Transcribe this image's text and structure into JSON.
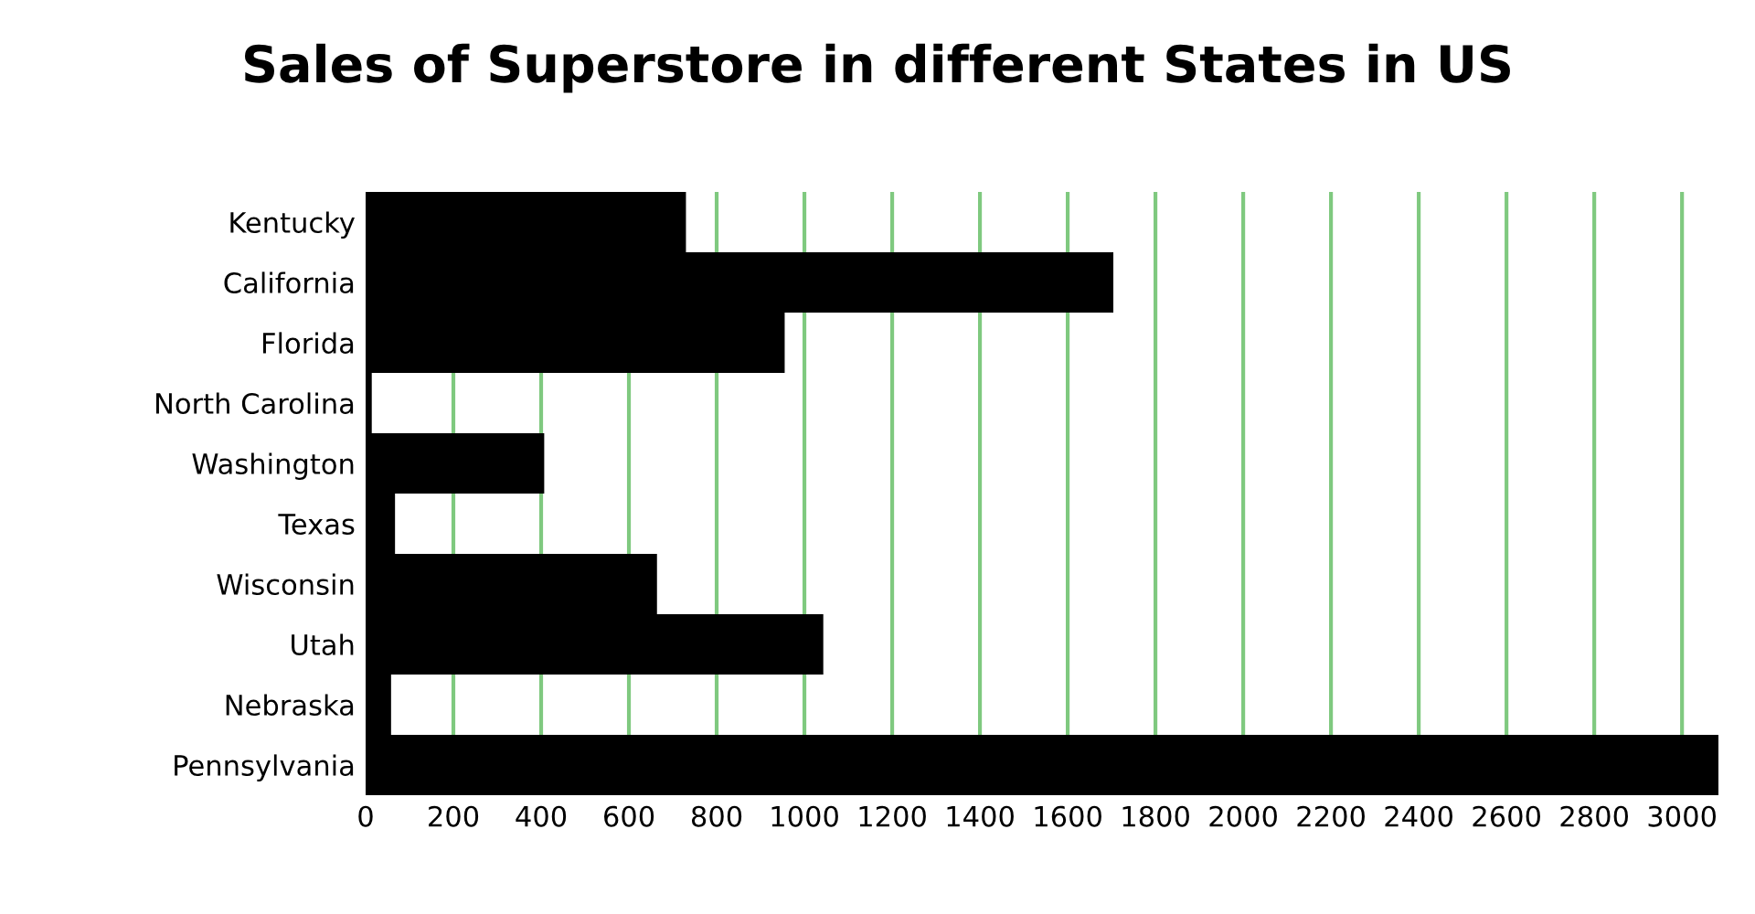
{
  "chart_data": {
    "type": "bar",
    "orientation": "horizontal",
    "title": "Sales of Superstore in different States in US",
    "categories": [
      "Kentucky",
      "California",
      "Florida",
      "North Carolina",
      "Washington",
      "Texas",
      "Wisconsin",
      "Utah",
      "Nebraska",
      "Pennsylvania"
    ],
    "values": [
      730,
      1704,
      955,
      14,
      407,
      67,
      664,
      1043,
      58,
      3083
    ],
    "color": "#000000",
    "xlim": [
      0,
      3083
    ],
    "xticks": [
      0,
      200,
      400,
      600,
      800,
      1000,
      1200,
      1400,
      1600,
      1800,
      2000,
      2200,
      2400,
      2600,
      2800,
      3000
    ],
    "grid": "x"
  }
}
